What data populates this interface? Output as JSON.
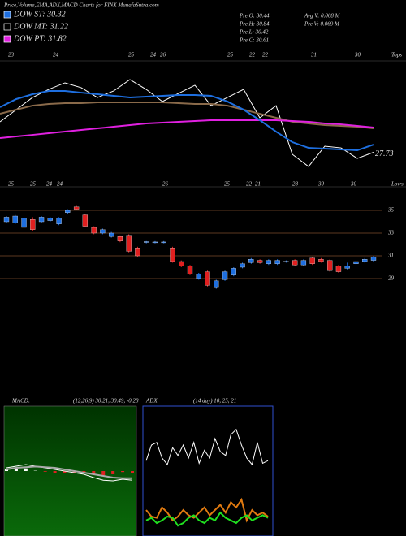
{
  "header": {
    "title": "Price,Volume,EMA,ADX,MACD Charts for FINX  MunafaSutra.com",
    "legend": [
      {
        "label": "DOW ST: 30.32",
        "color": "#1e6fe0"
      },
      {
        "label": "DOW MT: 31.22",
        "color": "#000000"
      },
      {
        "label": "DOW PT: 31.82",
        "color": "#e020e0"
      }
    ],
    "info": [
      "Pre  O: 30.44",
      "Pre  H: 30.84",
      "Pre  L: 30.42",
      "Pre  C: 30.61",
      "Avg V: 0.008 M",
      "Pre  V: 0.069 M"
    ]
  },
  "chart_data": [
    {
      "type": "line",
      "annotation": "27.73",
      "top_labels": [
        "23",
        "24",
        "25",
        "24",
        "26",
        "25",
        "22",
        "22",
        "31",
        "30"
      ],
      "top_corner": "Tops",
      "low_labels": [
        "25",
        "25",
        "24",
        "24",
        "26",
        "25",
        "22",
        "21",
        "28",
        "30",
        "30"
      ],
      "low_corner": "Lows",
      "ylim": [
        26,
        36
      ],
      "series": [
        {
          "color": "#ffffff",
          "values": [
            30.62,
            31.77,
            32.92,
            33.69,
            34.31,
            33.85,
            32.92,
            33.54,
            34.62,
            33.69,
            32.54,
            33.31,
            34.08,
            32.15,
            32.92,
            33.69,
            31.0,
            32.15,
            27.54,
            26.38,
            28.31,
            28.15,
            27.15,
            27.73
          ]
        },
        {
          "color": "#8a6a4a",
          "values": [
            31.38,
            31.77,
            32.15,
            32.31,
            32.38,
            32.38,
            32.46,
            32.46,
            32.46,
            32.46,
            32.46,
            32.38,
            32.31,
            32.31,
            32.15,
            31.77,
            31.38,
            31.0,
            30.62,
            30.46,
            30.31,
            30.23,
            30.15,
            30.0
          ]
        },
        {
          "color": "#e020e0",
          "values": [
            29.08,
            29.23,
            29.38,
            29.54,
            29.69,
            29.85,
            30.0,
            30.15,
            30.31,
            30.46,
            30.54,
            30.62,
            30.69,
            30.77,
            30.77,
            30.77,
            30.77,
            30.77,
            30.69,
            30.62,
            30.46,
            30.38,
            30.23,
            30.08
          ]
        },
        {
          "color": "#1e6fe0",
          "values": [
            32.0,
            32.77,
            33.23,
            33.54,
            33.54,
            33.38,
            33.23,
            33.08,
            32.92,
            33.0,
            33.08,
            33.15,
            33.15,
            33.08,
            32.54,
            31.77,
            30.77,
            29.69,
            28.69,
            28.15,
            28.08,
            28.0,
            27.92,
            28.46
          ]
        }
      ]
    },
    {
      "type": "candlestick",
      "ylim": [
        28,
        36
      ],
      "yticks": [
        35,
        33,
        31,
        29
      ],
      "up_color": "#1e6fe0",
      "down_color": "#e02020",
      "open": [
        34.0,
        33.9,
        33.5,
        34.2,
        34.0,
        34.1,
        33.8,
        34.8,
        35.3,
        34.6,
        33.5,
        33.0,
        32.7,
        32.7,
        32.8,
        31.7,
        32.2,
        32.2,
        32.2,
        31.7,
        30.5,
        30.1,
        29.0,
        29.6,
        28.2,
        28.9,
        29.3,
        30.0,
        30.4,
        30.6,
        30.3,
        30.3,
        30.5,
        30.6,
        30.2,
        30.8,
        30.7,
        30.6,
        30.1,
        29.9,
        30.3,
        30.5,
        30.6
      ],
      "close": [
        34.4,
        34.5,
        34.3,
        33.3,
        34.4,
        34.3,
        34.3,
        35.0,
        35.1,
        33.6,
        33.0,
        33.3,
        33.0,
        32.3,
        31.4,
        31.0,
        32.25,
        32.22,
        32.22,
        30.5,
        30.1,
        29.4,
        29.4,
        28.4,
        28.8,
        29.6,
        29.9,
        30.3,
        30.7,
        30.4,
        30.6,
        30.6,
        30.52,
        30.2,
        30.6,
        30.3,
        30.5,
        29.7,
        29.6,
        30.1,
        30.5,
        30.7,
        30.9
      ],
      "high": [
        34.5,
        34.6,
        34.4,
        34.4,
        34.5,
        34.4,
        34.4,
        35.1,
        35.4,
        34.7,
        33.6,
        33.4,
        33.1,
        32.8,
        32.9,
        31.8,
        32.3,
        32.3,
        32.3,
        31.8,
        30.6,
        30.2,
        29.5,
        29.7,
        28.9,
        29.7,
        30.0,
        30.4,
        30.8,
        30.7,
        30.7,
        30.7,
        30.6,
        30.7,
        30.7,
        30.9,
        30.8,
        30.7,
        30.2,
        30.4,
        30.6,
        30.8,
        31.0
      ],
      "low": [
        33.9,
        33.8,
        33.4,
        33.2,
        33.9,
        34.0,
        33.7,
        34.7,
        35.0,
        33.5,
        32.9,
        32.9,
        32.6,
        32.2,
        31.3,
        30.9,
        32.1,
        32.1,
        32.1,
        30.4,
        30.0,
        29.3,
        28.9,
        28.3,
        28.1,
        28.8,
        29.2,
        29.9,
        30.3,
        30.3,
        30.2,
        30.2,
        30.4,
        30.1,
        30.1,
        30.2,
        30.4,
        29.6,
        29.5,
        29.8,
        30.2,
        30.4,
        30.5
      ]
    },
    {
      "type": "macd",
      "title": "MACD:",
      "subtitle": "(12,26,9) 30.21, 30.49, -0.28",
      "ylim": [
        -2,
        2
      ],
      "hist_color": "#e02020",
      "series": [
        {
          "color": "#ffffff",
          "values": [
            0.1,
            0.15,
            0.2,
            0.15,
            0.1,
            0.05,
            0.0,
            -0.05,
            -0.1,
            -0.2,
            -0.28,
            -0.3,
            -0.25,
            -0.28
          ]
        },
        {
          "color": "#aaaaaa",
          "values": [
            0.05,
            0.1,
            0.12,
            0.14,
            0.12,
            0.1,
            0.05,
            0.0,
            -0.05,
            -0.1,
            -0.15,
            -0.2,
            -0.22,
            -0.22
          ]
        }
      ],
      "hist": [
        0.05,
        0.05,
        0.08,
        0.01,
        -0.02,
        -0.05,
        -0.05,
        -0.05,
        -0.05,
        -0.1,
        -0.13,
        -0.1,
        -0.03,
        -0.06
      ]
    },
    {
      "type": "adx",
      "title": "ADX",
      "subtitle": "(14 day) 10, 25, 21",
      "ylim": [
        0,
        100
      ],
      "series": [
        {
          "color": "#ffffff",
          "values": [
            58,
            70,
            72,
            60,
            55,
            68,
            62,
            70,
            60,
            72,
            56,
            66,
            60,
            75,
            65,
            62,
            78,
            82,
            70,
            60,
            55,
            72,
            56,
            58
          ]
        },
        {
          "color": "#e07a10",
          "values": [
            20,
            15,
            14,
            22,
            18,
            12,
            15,
            20,
            16,
            14,
            18,
            22,
            16,
            20,
            24,
            18,
            26,
            22,
            28,
            12,
            20,
            16,
            18,
            15
          ]
        },
        {
          "color": "#20e020",
          "values": [
            12,
            14,
            10,
            12,
            15,
            14,
            8,
            10,
            14,
            16,
            12,
            10,
            14,
            12,
            18,
            14,
            12,
            10,
            14,
            16,
            12,
            14,
            16,
            14
          ]
        }
      ]
    }
  ]
}
